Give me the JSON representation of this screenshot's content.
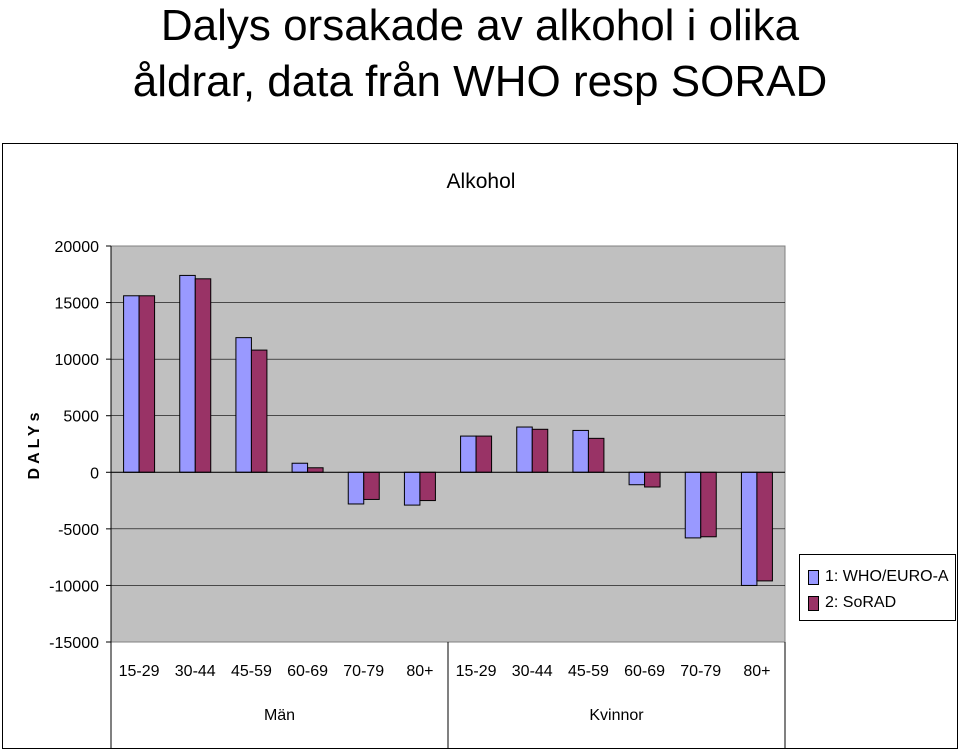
{
  "page_title_line1": "Dalys orsakade av alkohol i olika",
  "page_title_line2": "åldrar, data från WHO resp SORAD",
  "chart_data": {
    "type": "bar",
    "title": "Alkohol",
    "xlabel": "",
    "ylabel": "DALYs",
    "ylim": [
      -15000,
      20000
    ],
    "yticks": [
      20000,
      15000,
      10000,
      5000,
      0,
      -5000,
      -10000,
      -15000
    ],
    "categories": [
      "15-29",
      "30-44",
      "45-59",
      "60-69",
      "70-79",
      "80+",
      "15-29",
      "30-44",
      "45-59",
      "60-69",
      "70-79",
      "80+"
    ],
    "groups": [
      {
        "label": "Män",
        "start": 0,
        "end": 5
      },
      {
        "label": "Kvinnor",
        "start": 6,
        "end": 11
      }
    ],
    "series": [
      {
        "name": "1: WHO/EURO-A",
        "color": "#9999ff",
        "values": [
          15600,
          17400,
          11900,
          800,
          -2800,
          -2900,
          3200,
          4000,
          3700,
          -1100,
          -5800,
          -10000
        ]
      },
      {
        "name": "2: SoRAD",
        "color": "#993366",
        "values": [
          15600,
          17100,
          10800,
          400,
          -2400,
          -2500,
          3200,
          3800,
          3000,
          -1300,
          -5700,
          -9600
        ]
      }
    ],
    "grid": true,
    "legend_position": "right",
    "plot_background": "#c0c0c0"
  }
}
